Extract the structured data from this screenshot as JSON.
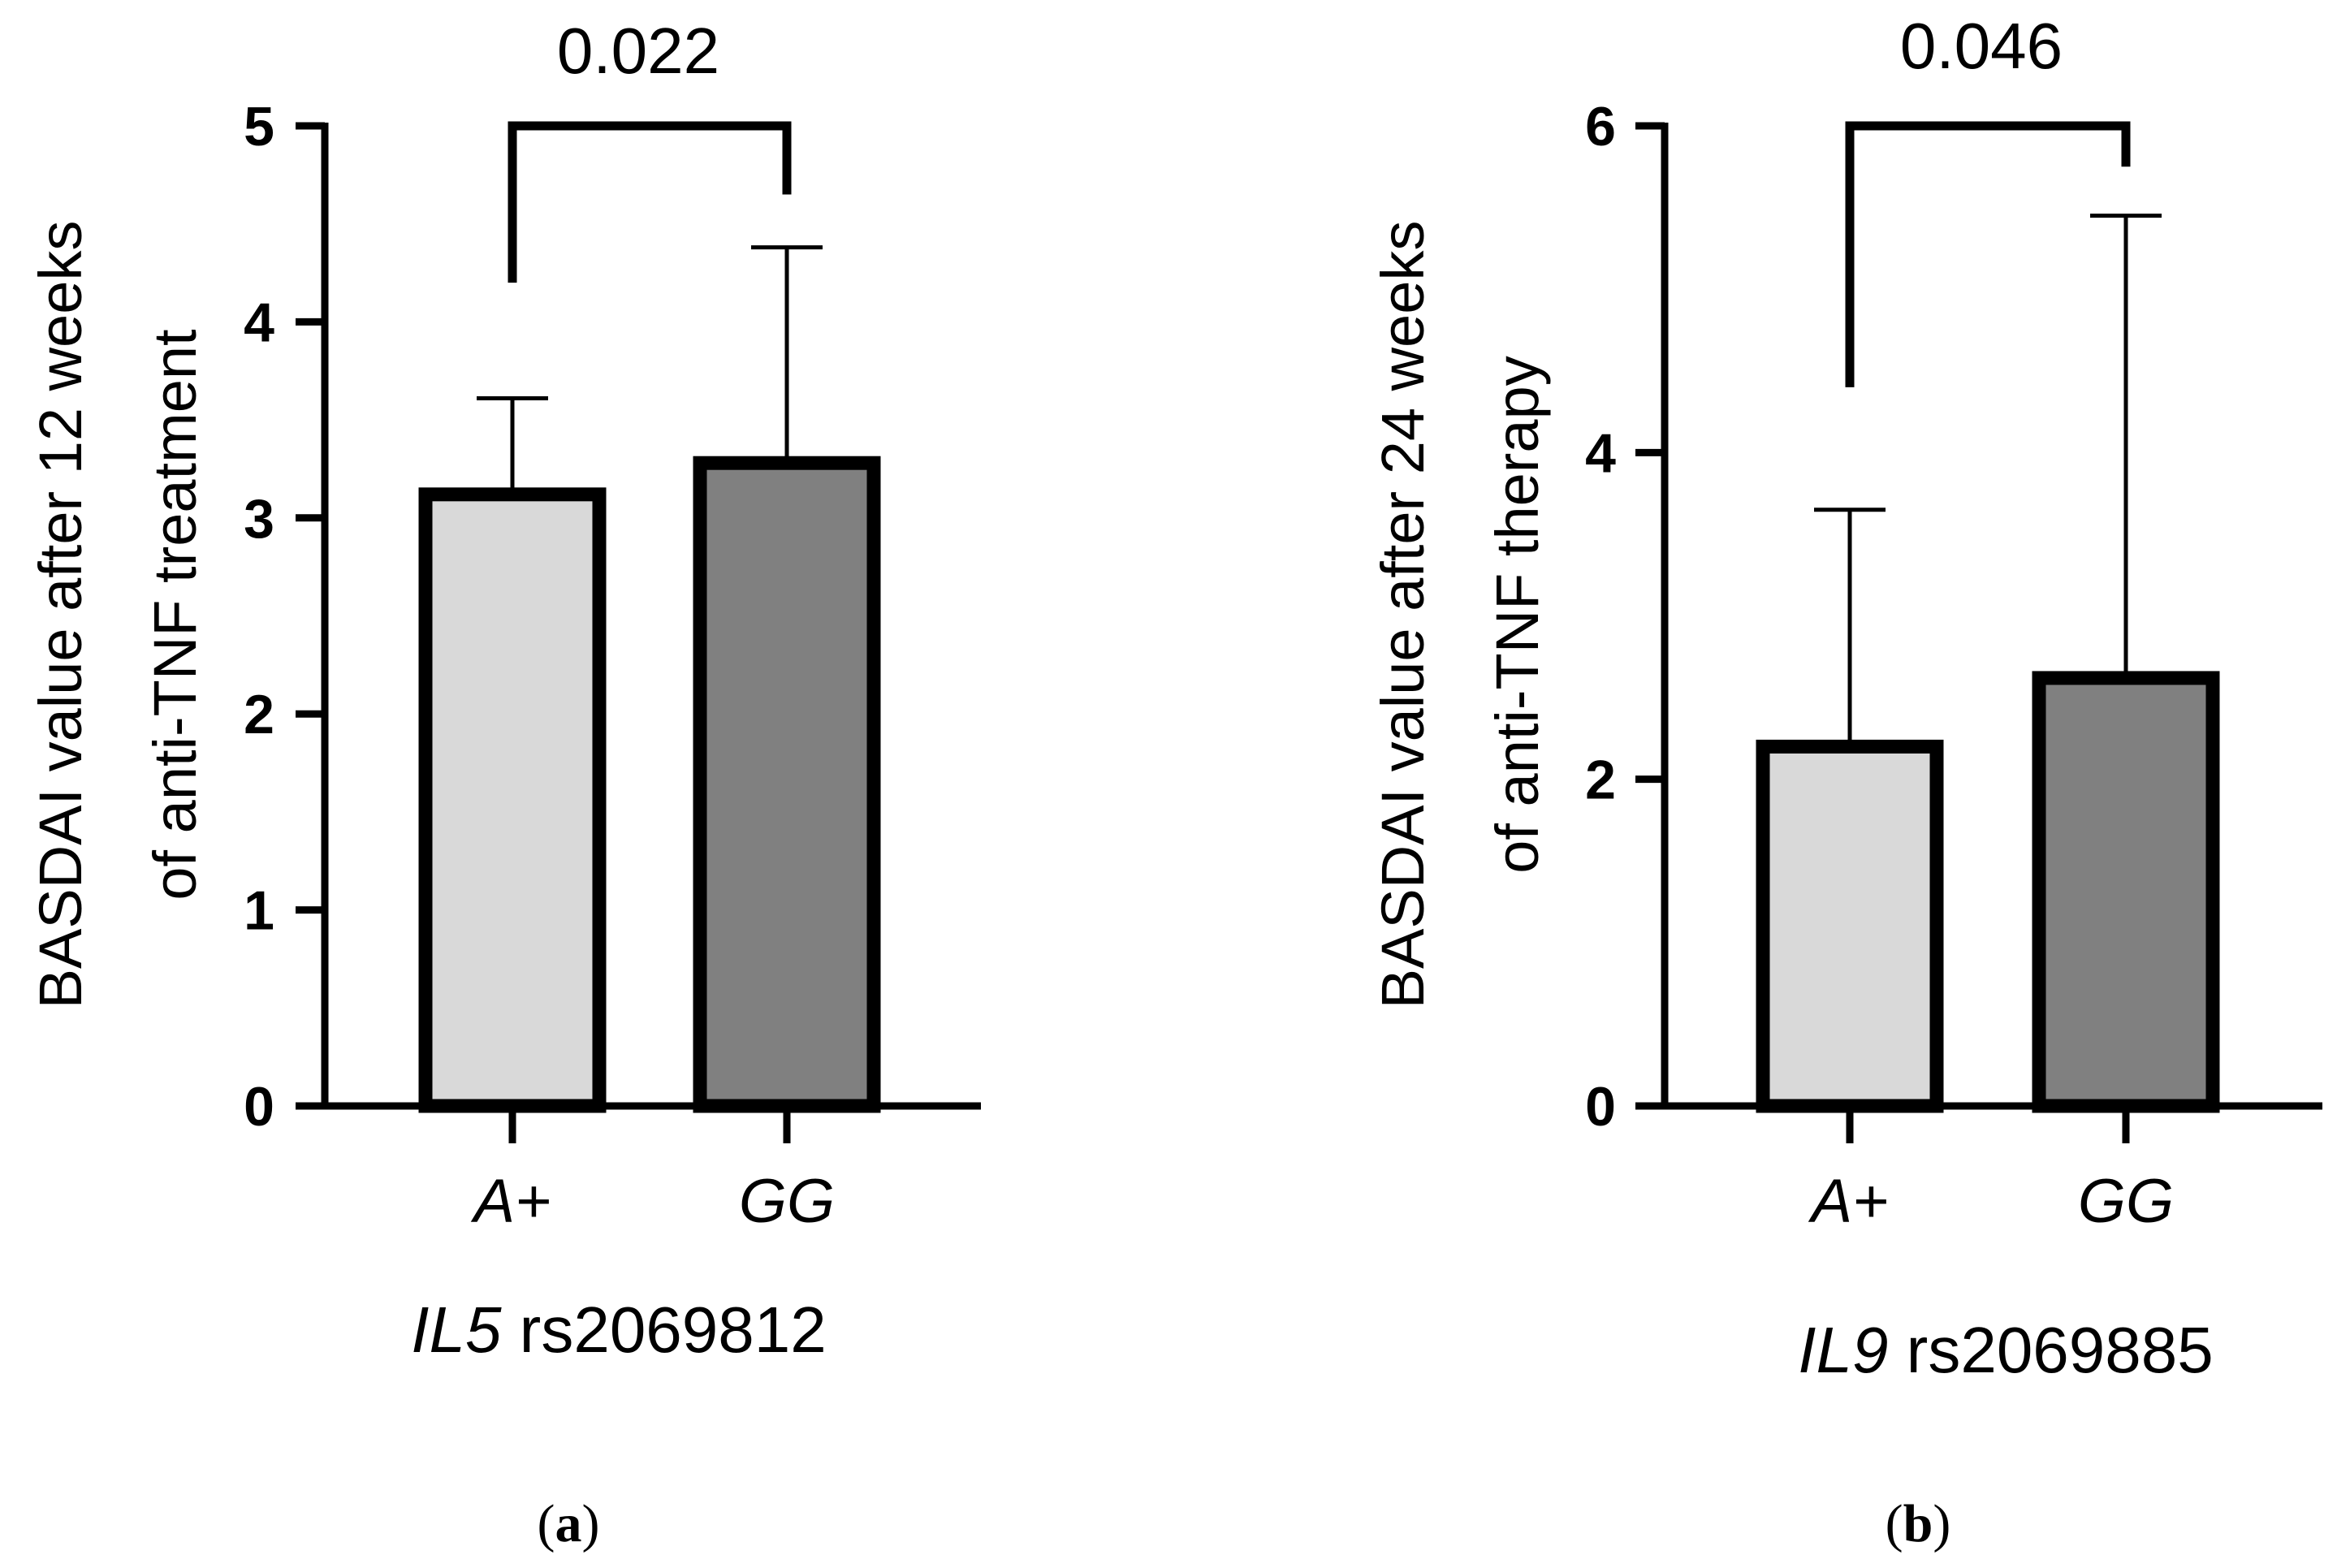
{
  "chart_data": [
    {
      "type": "bar",
      "panel": "a",
      "categories": [
        "A+",
        "GG"
      ],
      "values": [
        3.12,
        3.28
      ],
      "errors": [
        0.49,
        1.1
      ],
      "colors": [
        "#d9d9d9",
        "#808080"
      ],
      "ylim": [
        0,
        5
      ],
      "yticks": [
        0,
        1,
        2,
        3,
        4,
        5
      ],
      "ylabel_lines": [
        "BASDAI value after 12 weeks",
        "of anti-TNF treatment"
      ],
      "xlabel_gene": "IL5",
      "xlabel_snp": " rs2069812",
      "p_value": "0.022",
      "bracket_ends": [
        4.2,
        4.65
      ],
      "bracket_top": 5.0
    },
    {
      "type": "bar",
      "panel": "b",
      "categories": [
        "A+",
        "GG"
      ],
      "values": [
        2.2,
        2.62
      ],
      "errors": [
        1.45,
        2.83
      ],
      "colors": [
        "#d9d9d9",
        "#808080"
      ],
      "ylim": [
        0,
        6
      ],
      "yticks": [
        0,
        2,
        4,
        6
      ],
      "ylabel_lines": [
        "BASDAI value after 24 weeks",
        "of anti-TNF therapy"
      ],
      "xlabel_gene": "IL9",
      "xlabel_snp": " rs2069885",
      "p_value": "0.046",
      "bracket_ends": [
        4.4,
        5.75
      ],
      "bracket_top": 6.0
    }
  ],
  "panel_labels": {
    "a": {
      "open": "(",
      "letter": "a",
      "close": ")"
    },
    "b": {
      "open": "(",
      "letter": "b",
      "close": ")"
    }
  }
}
